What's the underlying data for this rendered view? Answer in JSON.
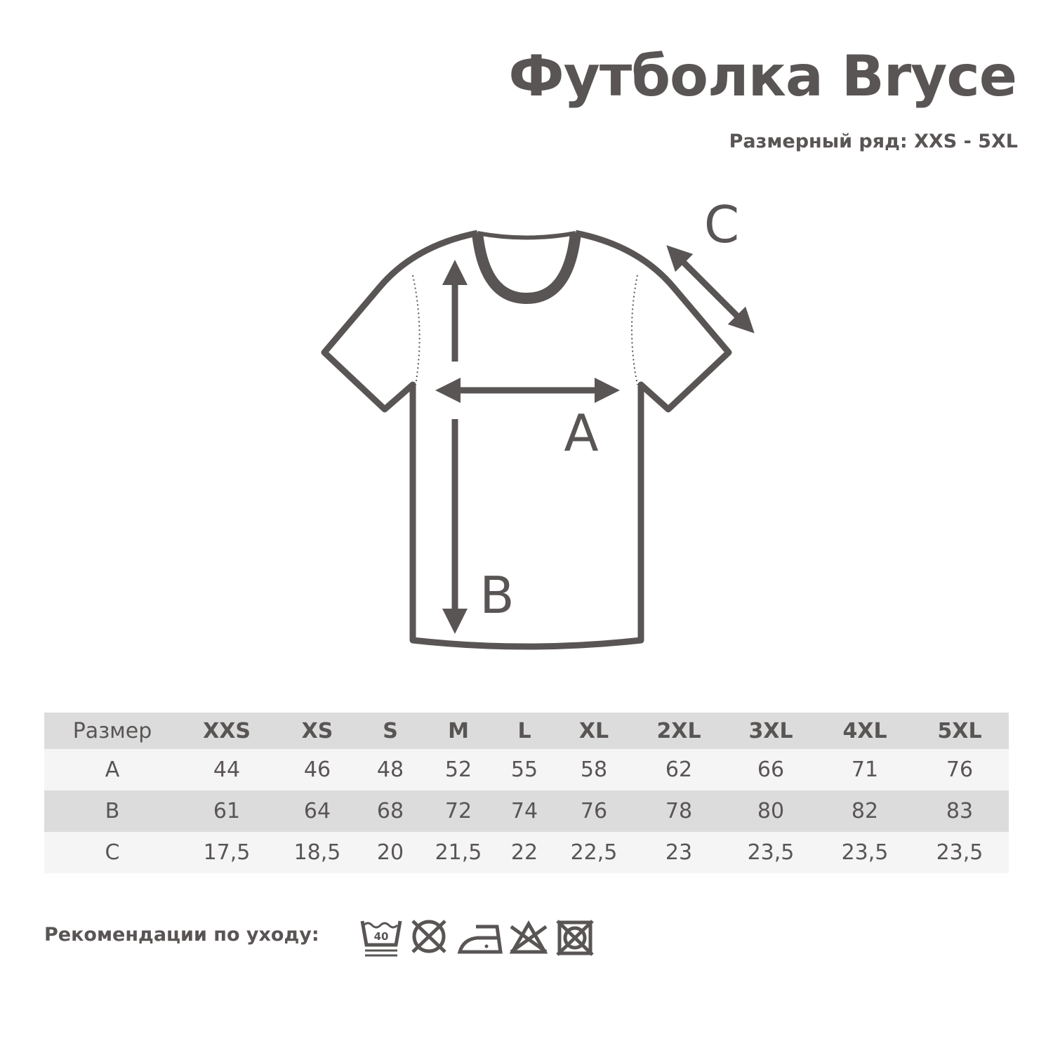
{
  "title": "Футболка Bryce",
  "subtitle": "Размерный ряд: XXS - 5XL",
  "diagram": {
    "labels": {
      "a": "A",
      "b": "B",
      "c": "C"
    }
  },
  "table": {
    "headers": [
      "Размер",
      "XXS",
      "XS",
      "S",
      "M",
      "L",
      "XL",
      "2XL",
      "3XL",
      "4XL",
      "5XL"
    ],
    "rows": [
      [
        "A",
        "44",
        "46",
        "48",
        "52",
        "55",
        "58",
        "62",
        "66",
        "71",
        "76"
      ],
      [
        "B",
        "61",
        "64",
        "68",
        "72",
        "74",
        "76",
        "78",
        "80",
        "82",
        "83"
      ],
      [
        "C",
        "17,5",
        "18,5",
        "20",
        "21,5",
        "22",
        "22,5",
        "23",
        "23,5",
        "23,5",
        "23,5"
      ]
    ]
  },
  "care": {
    "label": "Рекомендации по уходу:",
    "wash_temp": "40",
    "icons": [
      "wash-40-gentle-icon",
      "do-not-tumble-dry-icon",
      "iron-low-icon",
      "do-not-bleach-icon",
      "do-not-dry-clean-icon"
    ]
  },
  "colors": {
    "ink": "#5a5555",
    "header_bg": "#dcdcdc",
    "row_light": "#f5f5f5"
  }
}
